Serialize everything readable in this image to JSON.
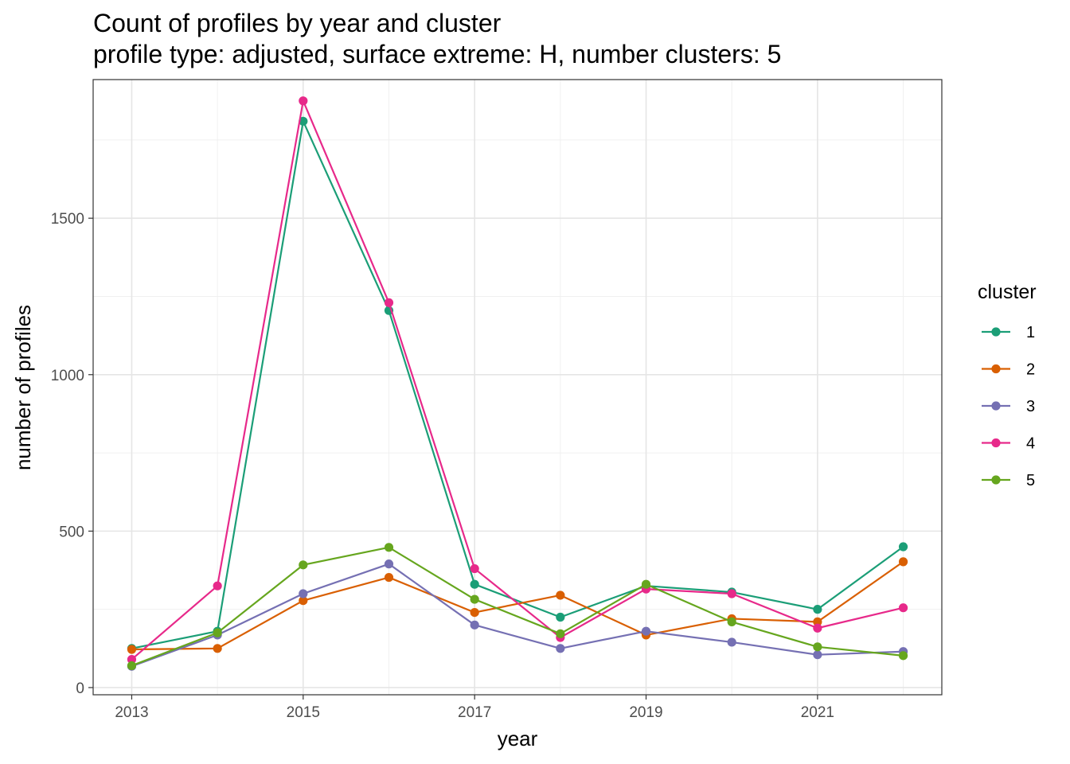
{
  "chart_data": {
    "type": "line",
    "title": "Count of profiles by year and cluster",
    "subtitle": "profile type: adjusted, surface extreme: H, number clusters: 5",
    "xlabel": "year",
    "ylabel": "number of profiles",
    "x": [
      2013,
      2014,
      2015,
      2016,
      2017,
      2018,
      2019,
      2020,
      2021,
      2022
    ],
    "x_ticks": [
      2013,
      2015,
      2017,
      2019,
      2021
    ],
    "x_tick_labels": [
      "2013",
      "2015",
      "2017",
      "2019",
      "2021"
    ],
    "y_ticks": [
      0,
      500,
      1000,
      1500
    ],
    "y_tick_labels": [
      "0",
      "500",
      "1000",
      "1500"
    ],
    "xlim": [
      2012.55,
      2022.45
    ],
    "ylim": [
      -23,
      1943
    ],
    "grid": true,
    "legend_title": "cluster",
    "legend_position": "right",
    "series": [
      {
        "name": "1",
        "color": "#1b9e77",
        "values": [
          125,
          180,
          1810,
          1205,
          330,
          225,
          325,
          305,
          250,
          450
        ]
      },
      {
        "name": "2",
        "color": "#d95f02",
        "values": [
          122,
          125,
          278,
          352,
          240,
          295,
          168,
          220,
          210,
          402
        ]
      },
      {
        "name": "3",
        "color": "#7570b3",
        "values": [
          68,
          168,
          300,
          395,
          200,
          125,
          180,
          145,
          105,
          115
        ]
      },
      {
        "name": "4",
        "color": "#e7298a",
        "values": [
          90,
          325,
          1875,
          1230,
          380,
          160,
          315,
          300,
          190,
          255
        ]
      },
      {
        "name": "5",
        "color": "#66a61e",
        "values": [
          70,
          175,
          392,
          448,
          282,
          172,
          330,
          210,
          130,
          102
        ]
      }
    ]
  }
}
